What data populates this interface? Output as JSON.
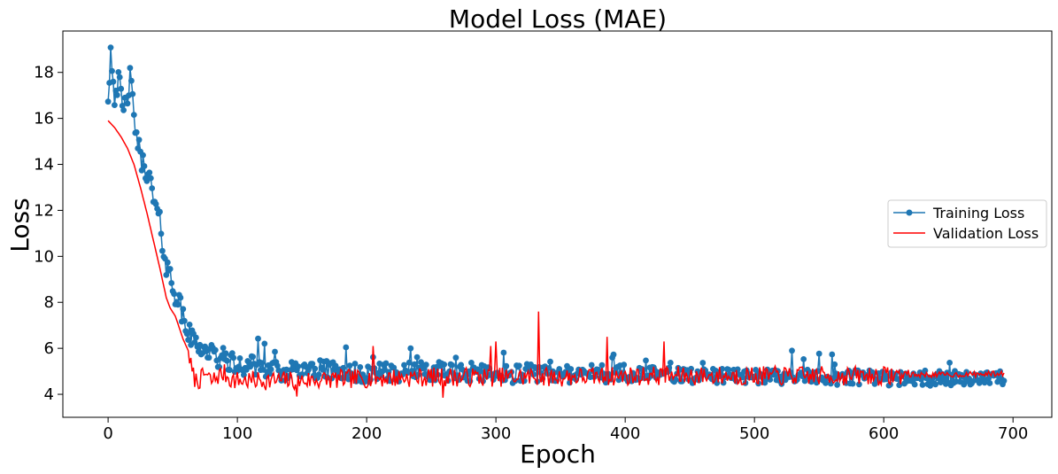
{
  "chart_data": {
    "type": "line",
    "title": "Model Loss (MAE)",
    "xlabel": "Epoch",
    "ylabel": "Loss",
    "xlim": [
      -35,
      730
    ],
    "ylim": [
      3.0,
      19.8
    ],
    "xticks": [
      0,
      100,
      200,
      300,
      400,
      500,
      600,
      700
    ],
    "yticks": [
      4,
      6,
      8,
      10,
      12,
      14,
      16,
      18
    ],
    "grid": false,
    "legend_position": "center-right",
    "series": [
      {
        "name": "Training Loss",
        "color": "#1f77b4",
        "marker": "circle",
        "n_epochs": 694,
        "keypoints": [
          [
            0,
            17.0
          ],
          [
            2,
            19.0
          ],
          [
            5,
            17.1
          ],
          [
            8,
            17.6
          ],
          [
            12,
            16.2
          ],
          [
            17,
            17.7
          ],
          [
            20,
            16.1
          ],
          [
            25,
            14.2
          ],
          [
            30,
            13.8
          ],
          [
            35,
            12.5
          ],
          [
            40,
            11.4
          ],
          [
            45,
            9.6
          ],
          [
            50,
            8.8
          ],
          [
            55,
            7.9
          ],
          [
            60,
            6.9
          ],
          [
            65,
            6.4
          ],
          [
            70,
            6.2
          ],
          [
            75,
            5.9
          ],
          [
            80,
            5.8
          ],
          [
            85,
            5.5
          ],
          [
            90,
            5.6
          ],
          [
            100,
            5.2
          ],
          [
            110,
            5.3
          ],
          [
            120,
            5.2
          ],
          [
            130,
            5.0
          ],
          [
            140,
            5.0
          ],
          [
            150,
            5.0
          ],
          [
            160,
            5.1
          ],
          [
            200,
            4.9
          ],
          [
            250,
            5.0
          ],
          [
            300,
            4.9
          ],
          [
            350,
            4.9
          ],
          [
            400,
            4.9
          ],
          [
            450,
            4.8
          ],
          [
            500,
            4.8
          ],
          [
            550,
            4.75
          ],
          [
            600,
            4.7
          ],
          [
            650,
            4.7
          ],
          [
            693,
            4.75
          ]
        ]
      },
      {
        "name": "Validation Loss",
        "color": "#ff0000",
        "marker": "none",
        "n_epochs": 694,
        "keypoints": [
          [
            0,
            15.9
          ],
          [
            5,
            15.6
          ],
          [
            10,
            15.2
          ],
          [
            15,
            14.7
          ],
          [
            20,
            14.0
          ],
          [
            25,
            13.0
          ],
          [
            30,
            11.9
          ],
          [
            35,
            10.7
          ],
          [
            40,
            9.5
          ],
          [
            45,
            8.2
          ],
          [
            48,
            7.75
          ],
          [
            52,
            7.4
          ],
          [
            55,
            6.9
          ],
          [
            58,
            6.4
          ],
          [
            62,
            5.9
          ],
          [
            65,
            4.9
          ],
          [
            68,
            4.6
          ],
          [
            72,
            4.65
          ],
          [
            75,
            4.9
          ],
          [
            80,
            4.55
          ],
          [
            85,
            4.8
          ],
          [
            90,
            4.9
          ],
          [
            95,
            4.65
          ],
          [
            100,
            4.6
          ],
          [
            150,
            4.6
          ],
          [
            200,
            4.7
          ],
          [
            250,
            4.75
          ],
          [
            300,
            4.75
          ],
          [
            350,
            4.75
          ],
          [
            400,
            4.8
          ],
          [
            450,
            4.8
          ],
          [
            500,
            4.8
          ],
          [
            550,
            4.8
          ],
          [
            600,
            4.8
          ],
          [
            620,
            4.85
          ],
          [
            650,
            4.85
          ],
          [
            693,
            4.9
          ]
        ],
        "spikes": [
          [
            333,
            7.6
          ],
          [
            300,
            6.3
          ],
          [
            386,
            6.5
          ],
          [
            430,
            6.3
          ],
          [
            205,
            6.1
          ],
          [
            296,
            6.1
          ],
          [
            146,
            3.9
          ],
          [
            259,
            3.85
          ]
        ]
      }
    ]
  }
}
